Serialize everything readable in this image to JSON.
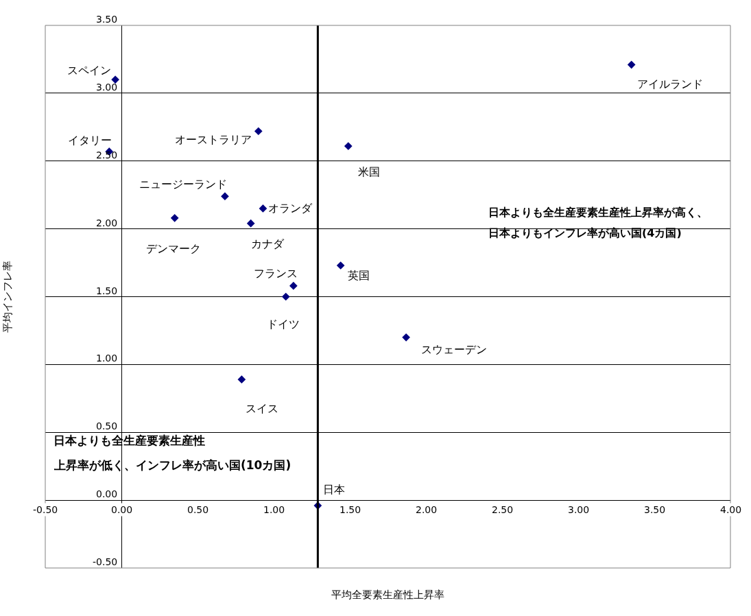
{
  "chart_data": {
    "type": "scatter",
    "xlabel": "平均全要素生産性上昇率",
    "ylabel": "平均インフレ率",
    "x": [
      -0.04,
      3.35,
      0.9,
      1.49,
      -0.08,
      0.68,
      0.93,
      0.35,
      0.85,
      1.44,
      1.13,
      1.08,
      1.87,
      0.79,
      1.29
    ],
    "series": [
      {
        "color": "#000080",
        "values": [
          3.1,
          3.21,
          2.72,
          2.61,
          2.57,
          2.24,
          2.15,
          2.08,
          2.04,
          1.73,
          1.58,
          1.5,
          1.2,
          0.89,
          -0.04
        ]
      }
    ],
    "annotations": [
      {
        "text": "スペイン",
        "x": -0.04,
        "y": 3.1
      },
      {
        "text": "アイルランド",
        "x": 3.35,
        "y": 3.21
      },
      {
        "text": "オーストラリア",
        "x": 0.9,
        "y": 2.72
      },
      {
        "text": "米国",
        "x": 1.49,
        "y": 2.61
      },
      {
        "text": "イタリー",
        "x": -0.08,
        "y": 2.57
      },
      {
        "text": "ニュージーランド",
        "x": 0.68,
        "y": 2.24
      },
      {
        "text": "オランダ",
        "x": 0.93,
        "y": 2.15
      },
      {
        "text": "デンマーク",
        "x": 0.35,
        "y": 2.08
      },
      {
        "text": "カナダ",
        "x": 0.85,
        "y": 2.04
      },
      {
        "text": "英国",
        "x": 1.44,
        "y": 1.73
      },
      {
        "text": "フランス",
        "x": 1.13,
        "y": 1.58
      },
      {
        "text": "ドイツ",
        "x": 1.08,
        "y": 1.5
      },
      {
        "text": "スウェーデン",
        "x": 1.87,
        "y": 1.2
      },
      {
        "text": "スイス",
        "x": 0.79,
        "y": 0.89
      },
      {
        "text": "日本",
        "x": 1.29,
        "y": -0.04
      },
      "日本よりも全生産要素生産性上昇率が高く、",
      "日本よりもインフレ率が高い国(4カ国)",
      "日本よりも全生産要素生産性",
      "上昇率が低く、インフレ率が高い国(10カ国)"
    ],
    "ref_lines": [
      {
        "axis": "x",
        "value": 1.29,
        "color": "#000000"
      }
    ],
    "xlim": [
      -0.5,
      4.0
    ],
    "xticks": [
      {
        "value": -0.5,
        "label": "-0.50"
      },
      {
        "value": 0,
        "label": "0.00"
      },
      {
        "value": 0.5,
        "label": "0.50"
      },
      {
        "value": 1,
        "label": "1.00"
      },
      {
        "value": 1.5,
        "label": "1.50"
      },
      {
        "value": 2,
        "label": "2.00"
      },
      {
        "value": 2.5,
        "label": "2.50"
      },
      {
        "value": 3,
        "label": "3.00"
      },
      {
        "value": 3.5,
        "label": "3.50"
      },
      {
        "value": 4,
        "label": "4.00"
      }
    ],
    "ylim": [
      -0.5,
      3.5
    ],
    "yticks": [
      {
        "value": -0.5,
        "label": "-0.50"
      },
      {
        "value": 0,
        "label": "0.00"
      },
      {
        "value": 0.5,
        "label": "0.50"
      },
      {
        "value": 1,
        "label": "1.00"
      },
      {
        "value": 1.5,
        "label": "1.50"
      },
      {
        "value": 2,
        "label": "2.00"
      },
      {
        "value": 2.5,
        "label": "2.50"
      },
      {
        "value": 3,
        "label": "3.00"
      },
      {
        "value": 3.5,
        "label": "3.50"
      }
    ],
    "grid": "y",
    "marker": "diamond"
  }
}
